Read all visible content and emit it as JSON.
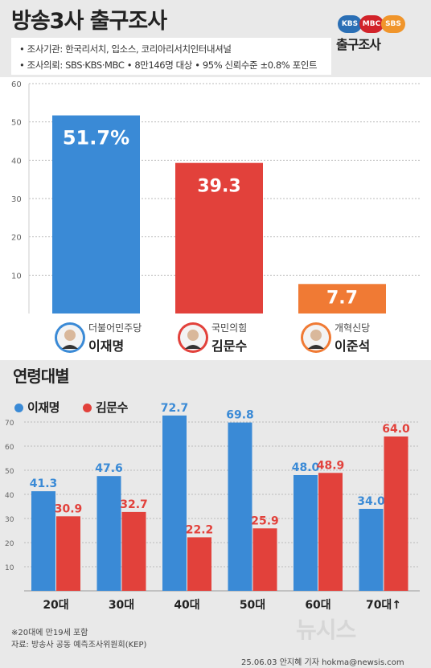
{
  "header": {
    "title": "방송3사 출구조사",
    "logos": [
      "KBS",
      "MBC",
      "SBS"
    ],
    "logo_caption": "출구조사",
    "info": [
      "• 조사기관: 한국리서치, 입소스, 코리아리서치인터내셔널",
      "• 조사의뢰: SBS·KBS·MBC • 8만146명 대상 • 95% 신뢰수준 ±0.8% 포인트"
    ]
  },
  "colors": {
    "lee": "#3a8ad6",
    "kim": "#e2413b",
    "lee_jun_seok": "#f07a34",
    "background": "#e9e9e9"
  },
  "chart_data": [
    {
      "type": "bar",
      "title": "방송3사 출구조사",
      "categories": [
        "이재명",
        "김문수",
        "이준석"
      ],
      "parties": [
        "더불어민주당",
        "국민의힘",
        "개혁신당"
      ],
      "values": [
        51.7,
        39.3,
        7.7
      ],
      "value_labels": [
        "51.7%",
        "39.3",
        "7.7"
      ],
      "colors": [
        "#3a8ad6",
        "#e2413b",
        "#f07a34"
      ],
      "yticks": [
        10,
        20,
        30,
        40,
        50,
        60
      ],
      "ylim": [
        0,
        60
      ],
      "grid": true
    },
    {
      "type": "bar",
      "title": "연령대별",
      "categories": [
        "20대",
        "30대",
        "40대",
        "50대",
        "60대",
        "70대↑"
      ],
      "series": [
        {
          "name": "이재명",
          "color": "#3a8ad6",
          "values": [
            41.3,
            47.6,
            72.7,
            69.8,
            48.0,
            34.0
          ],
          "labels": [
            "41.3",
            "47.6",
            "72.7",
            "69.8",
            "48.0",
            "34.0"
          ]
        },
        {
          "name": "김문수",
          "color": "#e2413b",
          "values": [
            30.9,
            32.7,
            22.2,
            25.9,
            48.9,
            64.0
          ],
          "labels": [
            "30.9",
            "32.7",
            "22.2",
            "25.9",
            "48.9",
            "64.0"
          ]
        }
      ],
      "yticks": [
        10,
        20,
        30,
        40,
        50,
        60,
        70
      ],
      "ylim": [
        0,
        80
      ],
      "grid": true,
      "legend": "top-left"
    }
  ],
  "footnote": "※20대에 만19세 포함",
  "source": "자료: 방송사 공동 예측조사위원회(KEP)",
  "watermark": "뉴시스",
  "credit": "25.06.03 안지혜 기자 hokma@newsis.com"
}
